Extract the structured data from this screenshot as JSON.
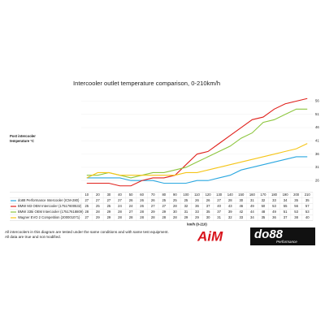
{
  "chart_data": {
    "type": "line",
    "title": "Intercooler outlet temperature comparison, 0-210km/h",
    "y_label": [
      "Post intercooler",
      "temperature °C"
    ],
    "x_label": "km/h (0-210)",
    "x": [
      10,
      20,
      30,
      40,
      50,
      60,
      70,
      80,
      90,
      100,
      110,
      120,
      130,
      140,
      150,
      160,
      170,
      180,
      190,
      200,
      210
    ],
    "xlim": [
      5,
      215
    ],
    "ylim": [
      23,
      58
    ],
    "yticks": [
      26,
      31,
      36,
      41,
      46,
      51,
      56
    ],
    "grid": true,
    "series": [
      {
        "name": "do88 Performance Intercooler (ICM-280)",
        "color": "#2aa7e0",
        "values": [
          27,
          27,
          27,
          27,
          26,
          26,
          26,
          25,
          25,
          25,
          26,
          26,
          27,
          28,
          30,
          31,
          32,
          33,
          34,
          35,
          35
        ]
      },
      {
        "name": "BMW M3 OEM Intercooler (17517600532)",
        "color": "#e0201b",
        "values": [
          25,
          25,
          25,
          24,
          24,
          26,
          27,
          27,
          28,
          32,
          36,
          37,
          40,
          43,
          46,
          49,
          50,
          53,
          55,
          56,
          57
        ]
      },
      {
        "name": "BMW 335i OEM Intercooler (17517618809)",
        "color": "#8dc63f",
        "values": [
          28,
          28,
          29,
          28,
          27,
          28,
          29,
          29,
          30,
          31,
          33,
          35,
          37,
          39,
          42,
          44,
          48,
          49,
          51,
          53,
          53
        ]
      },
      {
        "name": "Wagner EVO 2 Competition (200001071)",
        "color": "#f5c518",
        "values": [
          27,
          29,
          29,
          28,
          28,
          28,
          28,
          28,
          28,
          29,
          29,
          30,
          31,
          32,
          33,
          34,
          35,
          36,
          37,
          38,
          40
        ]
      }
    ],
    "footnote": [
      "All intercoolers in this diagram are tested under the same conditions and with same test equipment.",
      "All data are true and not modified."
    ]
  },
  "logos": {
    "aim": "AiM",
    "do88": "do88",
    "performance": "Performance"
  }
}
